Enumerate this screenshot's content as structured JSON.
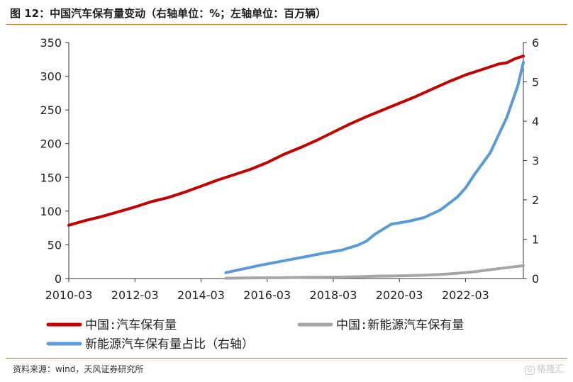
{
  "title": "图 12：中国汽车保有量变动（右轴单位：%；左轴单位：百万辆）",
  "source": "资料来源：wind，天风证券研究所",
  "watermark": "格隆汇",
  "watermark_logo": "G",
  "chart_data": {
    "type": "line",
    "x_labels": [
      "2010-03",
      "2012-03",
      "2014-03",
      "2016-03",
      "2018-03",
      "2020-03",
      "2022-03"
    ],
    "x_range": [
      "2010-03",
      "2023-12"
    ],
    "left_axis": {
      "ticks": [
        0,
        50,
        100,
        150,
        200,
        250,
        300,
        350
      ],
      "ylim": [
        0,
        350
      ]
    },
    "right_axis": {
      "ticks": [
        0,
        1,
        2,
        3,
        4,
        5,
        6
      ],
      "ylim": [
        0,
        6
      ]
    },
    "grid": false,
    "legend_position": "bottom",
    "series": [
      {
        "name": "中国:汽车保有量",
        "axis": "left",
        "color": "#c00000",
        "points": [
          [
            "2010-03",
            79
          ],
          [
            "2010-09",
            86
          ],
          [
            "2011-03",
            92
          ],
          [
            "2011-09",
            99
          ],
          [
            "2012-03",
            106
          ],
          [
            "2012-09",
            114
          ],
          [
            "2013-03",
            120
          ],
          [
            "2013-09",
            128
          ],
          [
            "2014-03",
            137
          ],
          [
            "2014-09",
            146
          ],
          [
            "2015-03",
            154
          ],
          [
            "2015-09",
            162
          ],
          [
            "2016-03",
            172
          ],
          [
            "2016-09",
            184
          ],
          [
            "2017-03",
            194
          ],
          [
            "2017-09",
            205
          ],
          [
            "2018-03",
            217
          ],
          [
            "2018-09",
            229
          ],
          [
            "2019-03",
            240
          ],
          [
            "2019-09",
            250
          ],
          [
            "2020-03",
            260
          ],
          [
            "2020-09",
            270
          ],
          [
            "2021-03",
            281
          ],
          [
            "2021-09",
            292
          ],
          [
            "2022-03",
            302
          ],
          [
            "2022-09",
            310
          ],
          [
            "2023-03",
            318
          ],
          [
            "2023-06",
            320
          ],
          [
            "2023-09",
            326
          ],
          [
            "2023-12",
            330
          ]
        ]
      },
      {
        "name": "中国:新能源汽车保有量",
        "axis": "left",
        "color": "#a6a6a6",
        "points": [
          [
            "2014-12",
            0.4
          ],
          [
            "2015-06",
            0.8
          ],
          [
            "2015-12",
            1.0
          ],
          [
            "2016-06",
            1.2
          ],
          [
            "2016-12",
            1.5
          ],
          [
            "2017-06",
            1.8
          ],
          [
            "2017-12",
            1.9
          ],
          [
            "2018-06",
            2.2
          ],
          [
            "2018-12",
            2.6
          ],
          [
            "2019-06",
            3.4
          ],
          [
            "2019-12",
            3.8
          ],
          [
            "2020-06",
            4.2
          ],
          [
            "2020-12",
            4.9
          ],
          [
            "2021-06",
            6.0
          ],
          [
            "2021-12",
            7.8
          ],
          [
            "2022-06",
            10.0
          ],
          [
            "2022-12",
            13.1
          ],
          [
            "2023-06",
            16.2
          ],
          [
            "2023-12",
            19.0
          ]
        ]
      },
      {
        "name": "新能源汽车保有量占比（右轴）",
        "axis": "right",
        "color": "#5b9bd5",
        "points": [
          [
            "2014-12",
            0.15
          ],
          [
            "2015-06",
            0.24
          ],
          [
            "2015-12",
            0.33
          ],
          [
            "2016-06",
            0.41
          ],
          [
            "2016-12",
            0.49
          ],
          [
            "2017-06",
            0.57
          ],
          [
            "2017-12",
            0.65
          ],
          [
            "2018-06",
            0.72
          ],
          [
            "2018-12",
            0.85
          ],
          [
            "2019-03",
            0.95
          ],
          [
            "2019-06",
            1.12
          ],
          [
            "2019-12",
            1.38
          ],
          [
            "2020-06",
            1.45
          ],
          [
            "2020-12",
            1.55
          ],
          [
            "2021-06",
            1.75
          ],
          [
            "2021-12",
            2.07
          ],
          [
            "2022-03",
            2.3
          ],
          [
            "2022-06",
            2.62
          ],
          [
            "2022-12",
            3.2
          ],
          [
            "2023-06",
            4.1
          ],
          [
            "2023-10",
            4.9
          ],
          [
            "2023-12",
            5.5
          ]
        ]
      }
    ]
  }
}
